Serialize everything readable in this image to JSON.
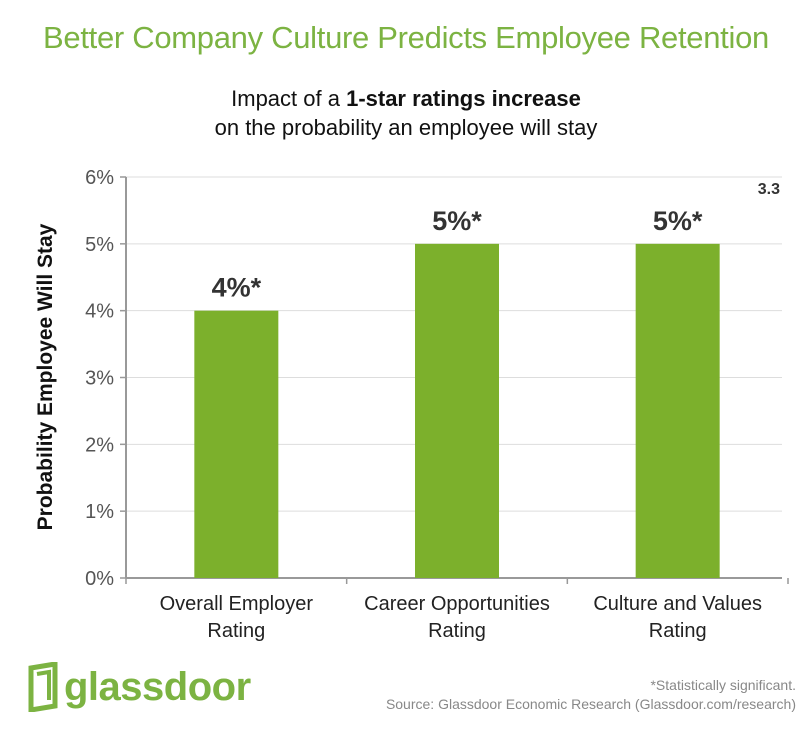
{
  "title": "Better Company Culture Predicts Employee Retention",
  "subtitle": {
    "prefix": "Impact of a ",
    "bold": "1-star ratings increase",
    "line2": "on the probability an employee will stay"
  },
  "corner_label": "3.3",
  "colors": {
    "bar": "#7cb02c",
    "title": "#7cb342",
    "grid": "#dddddd",
    "axis": "#999999"
  },
  "chart_data": {
    "type": "bar",
    "categories": [
      [
        "Overall Employer",
        "Rating"
      ],
      [
        "Career Opportunities",
        "Rating"
      ],
      [
        "Culture and Values",
        "Rating"
      ]
    ],
    "values": [
      4,
      5,
      5
    ],
    "data_labels": [
      "4%*",
      "5%*",
      "5%*"
    ],
    "ylabel": "Probability Employee Will Stay",
    "ylim": [
      0,
      6
    ],
    "yticks": [
      "0%",
      "1%",
      "2%",
      "3%",
      "4%",
      "5%",
      "6%"
    ],
    "grid": true
  },
  "footer": {
    "logo": "glassdoor",
    "note": "*Statistically significant.",
    "source": "Source: Glassdoor Economic Research (Glassdoor.com/research)"
  }
}
